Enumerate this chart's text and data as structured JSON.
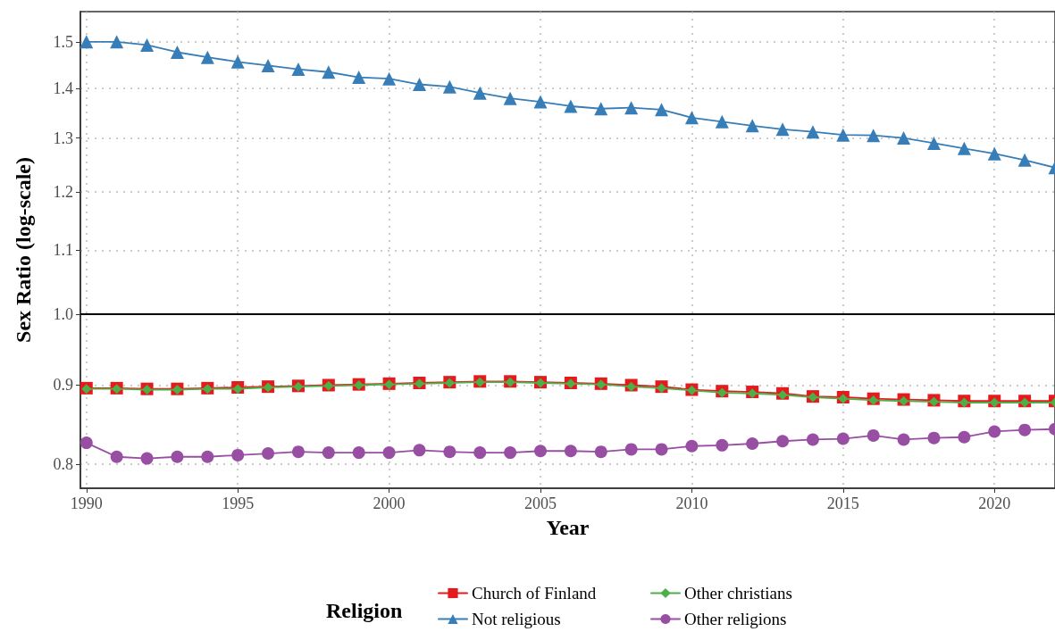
{
  "chart_data": {
    "type": "line",
    "xlabel": "Year",
    "ylabel": "Sex Ratio (log-scale)",
    "legend_title": "Religion",
    "x": [
      1990,
      1991,
      1992,
      1993,
      1994,
      1995,
      1996,
      1997,
      1998,
      1999,
      2000,
      2001,
      2002,
      2003,
      2004,
      2005,
      2006,
      2007,
      2008,
      2009,
      2010,
      2011,
      2012,
      2013,
      2014,
      2015,
      2016,
      2017,
      2018,
      2019,
      2020,
      2021,
      2022
    ],
    "series": [
      {
        "name": "Church of Finland",
        "color": "#e41a1c",
        "marker": "square",
        "values": [
          0.896,
          0.896,
          0.895,
          0.895,
          0.896,
          0.897,
          0.898,
          0.899,
          0.9,
          0.901,
          0.902,
          0.903,
          0.904,
          0.905,
          0.905,
          0.904,
          0.903,
          0.902,
          0.9,
          0.898,
          0.894,
          0.892,
          0.891,
          0.889,
          0.885,
          0.884,
          0.882,
          0.881,
          0.88,
          0.879,
          0.879,
          0.879,
          0.879
        ]
      },
      {
        "name": "Not religious",
        "color": "#377eb8",
        "marker": "triangle",
        "values": [
          1.5,
          1.5,
          1.493,
          1.477,
          1.466,
          1.456,
          1.448,
          1.44,
          1.434,
          1.423,
          1.42,
          1.408,
          1.403,
          1.39,
          1.379,
          1.372,
          1.363,
          1.358,
          1.36,
          1.356,
          1.34,
          1.332,
          1.324,
          1.317,
          1.312,
          1.306,
          1.305,
          1.3,
          1.29,
          1.28,
          1.27,
          1.258,
          1.244
        ]
      },
      {
        "name": "Other christians",
        "color": "#4daf4a",
        "marker": "diamond",
        "values": [
          0.895,
          0.895,
          0.894,
          0.894,
          0.895,
          0.895,
          0.897,
          0.898,
          0.899,
          0.9,
          0.901,
          0.902,
          0.903,
          0.904,
          0.904,
          0.903,
          0.902,
          0.901,
          0.898,
          0.896,
          0.893,
          0.89,
          0.889,
          0.887,
          0.884,
          0.882,
          0.88,
          0.879,
          0.878,
          0.877,
          0.877,
          0.877,
          0.877
        ]
      },
      {
        "name": "Other religions",
        "color": "#984ea3",
        "marker": "circle",
        "values": [
          0.826,
          0.809,
          0.807,
          0.809,
          0.809,
          0.811,
          0.813,
          0.815,
          0.814,
          0.814,
          0.814,
          0.817,
          0.815,
          0.814,
          0.814,
          0.816,
          0.816,
          0.815,
          0.818,
          0.818,
          0.822,
          0.823,
          0.825,
          0.828,
          0.83,
          0.831,
          0.835,
          0.83,
          0.832,
          0.833,
          0.84,
          0.842,
          0.843
        ]
      }
    ],
    "xlim": [
      1989.8,
      2022
    ],
    "xticks": [
      1990,
      1995,
      2000,
      2005,
      2010,
      2015,
      2020
    ],
    "ylim": [
      0.772,
      1.569
    ],
    "yticks": [
      0.8,
      0.9,
      {
        "value": 1,
        "label": "1.0"
      },
      1.1,
      1.2,
      1.3,
      1.4,
      1.5
    ],
    "log": "y",
    "grid": true,
    "legend": "bottom",
    "line_style": "solid",
    "ref_lines": [
      {
        "axis": "y",
        "value": 1,
        "color": "#000000",
        "line_style": "solid"
      }
    ]
  }
}
